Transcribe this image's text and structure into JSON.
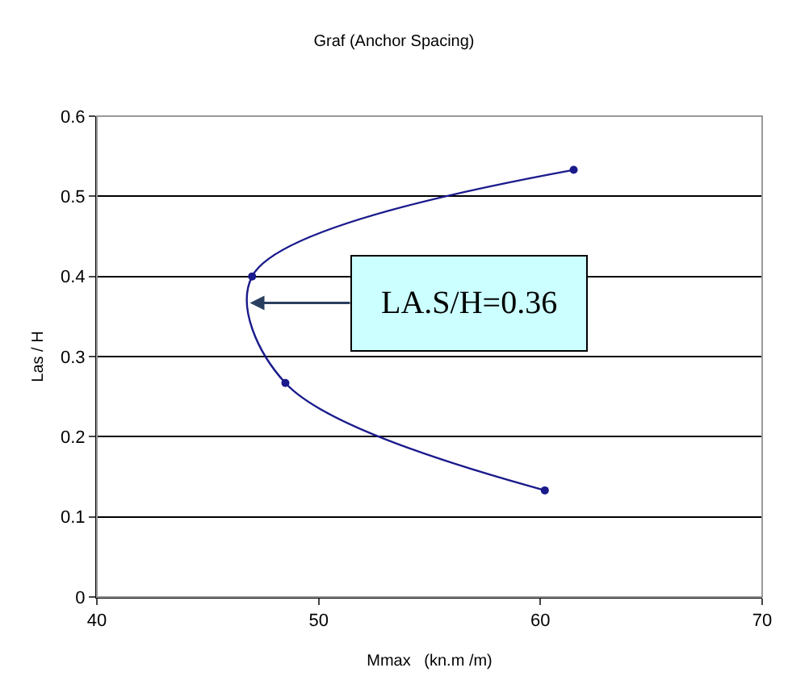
{
  "chart_data": {
    "type": "line",
    "title": "Graf (Anchor Spacing)",
    "xlabel": "Mmax   (kn.m /m)",
    "ylabel": "Las / H",
    "x": [
      60.2,
      48.5,
      47.0,
      61.5
    ],
    "series": [
      {
        "color": "#1a1a8c",
        "values": [
          0.133,
          0.267,
          0.4,
          0.533
        ]
      }
    ],
    "xlim": [
      40,
      70
    ],
    "xticks": [
      40,
      50,
      60,
      70
    ],
    "ylim": [
      0,
      0.6
    ],
    "yticks": [
      0,
      0.1,
      0.2,
      0.3,
      0.4,
      0.5,
      0.6
    ],
    "grid": "y",
    "marker": "circle",
    "line_style": "solid",
    "annotations": [
      {
        "text": "LA.S/H=0.36",
        "x": 46.9,
        "y": 0.367
      }
    ]
  }
}
